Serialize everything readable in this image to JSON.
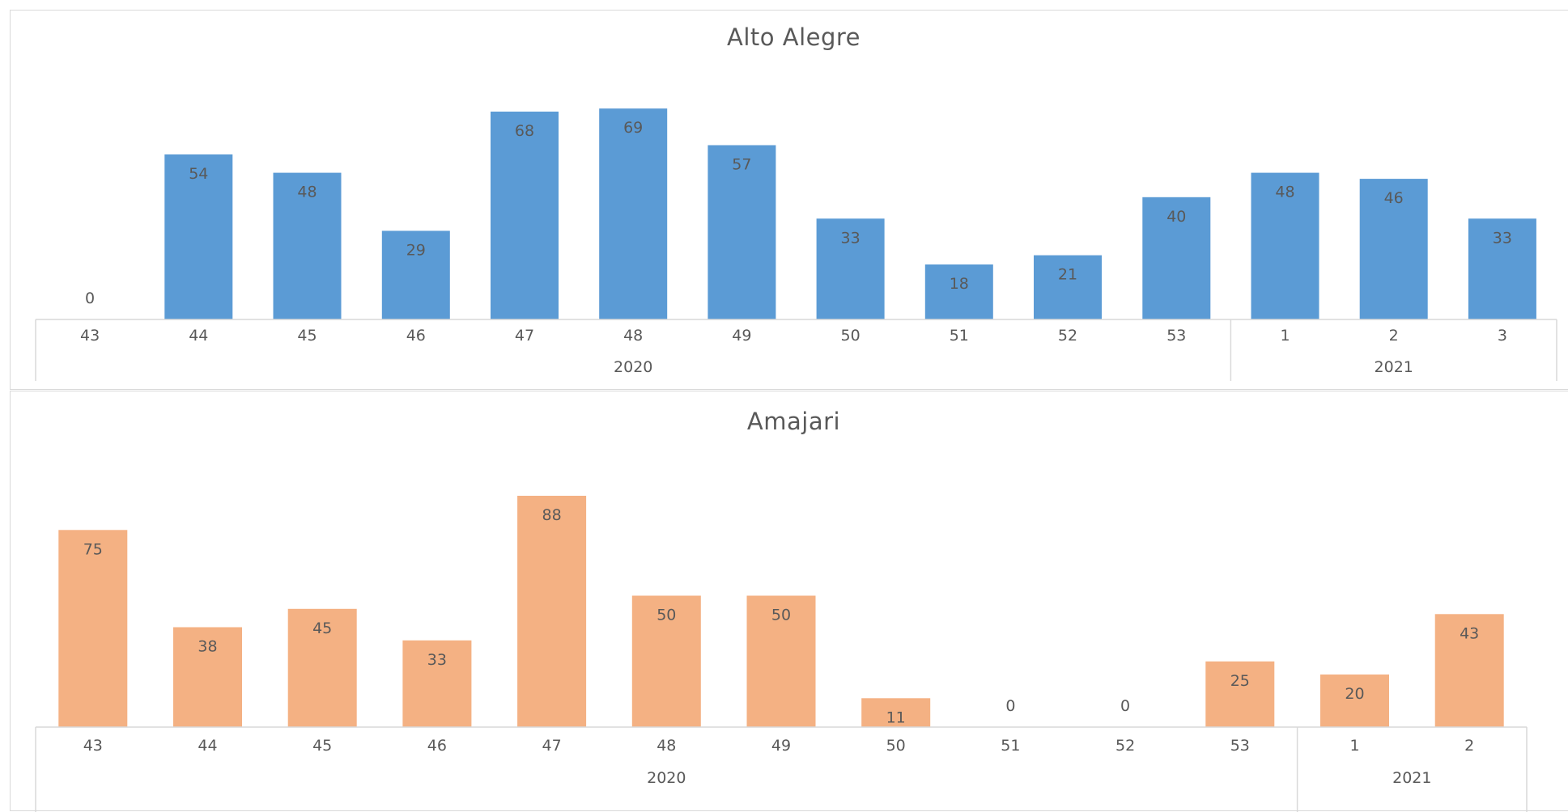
{
  "chart_data": [
    {
      "type": "bar",
      "title": "Alto Alegre",
      "xlabel": "",
      "ylabel": "",
      "color": "#5b9bd5",
      "categories": [
        "43",
        "44",
        "45",
        "46",
        "47",
        "48",
        "49",
        "50",
        "51",
        "52",
        "53",
        "1",
        "2",
        "3"
      ],
      "groups": [
        {
          "label": "2020",
          "count": 11
        },
        {
          "label": "2021",
          "count": 3
        }
      ],
      "values": [
        0,
        54,
        48,
        29,
        68,
        69,
        57,
        33,
        18,
        21,
        40,
        48,
        46,
        33
      ],
      "grid": false,
      "legend": "none"
    },
    {
      "type": "bar",
      "title": "Amajari",
      "xlabel": "",
      "ylabel": "",
      "color": "#f4b183",
      "categories": [
        "43",
        "44",
        "45",
        "46",
        "47",
        "48",
        "49",
        "50",
        "51",
        "52",
        "53",
        "1",
        "2"
      ],
      "groups": [
        {
          "label": "2020",
          "count": 11
        },
        {
          "label": "2021",
          "count": 2
        }
      ],
      "values": [
        75,
        38,
        45,
        33,
        88,
        50,
        50,
        11,
        0,
        0,
        25,
        20,
        43
      ],
      "grid": false,
      "legend": "none"
    }
  ]
}
